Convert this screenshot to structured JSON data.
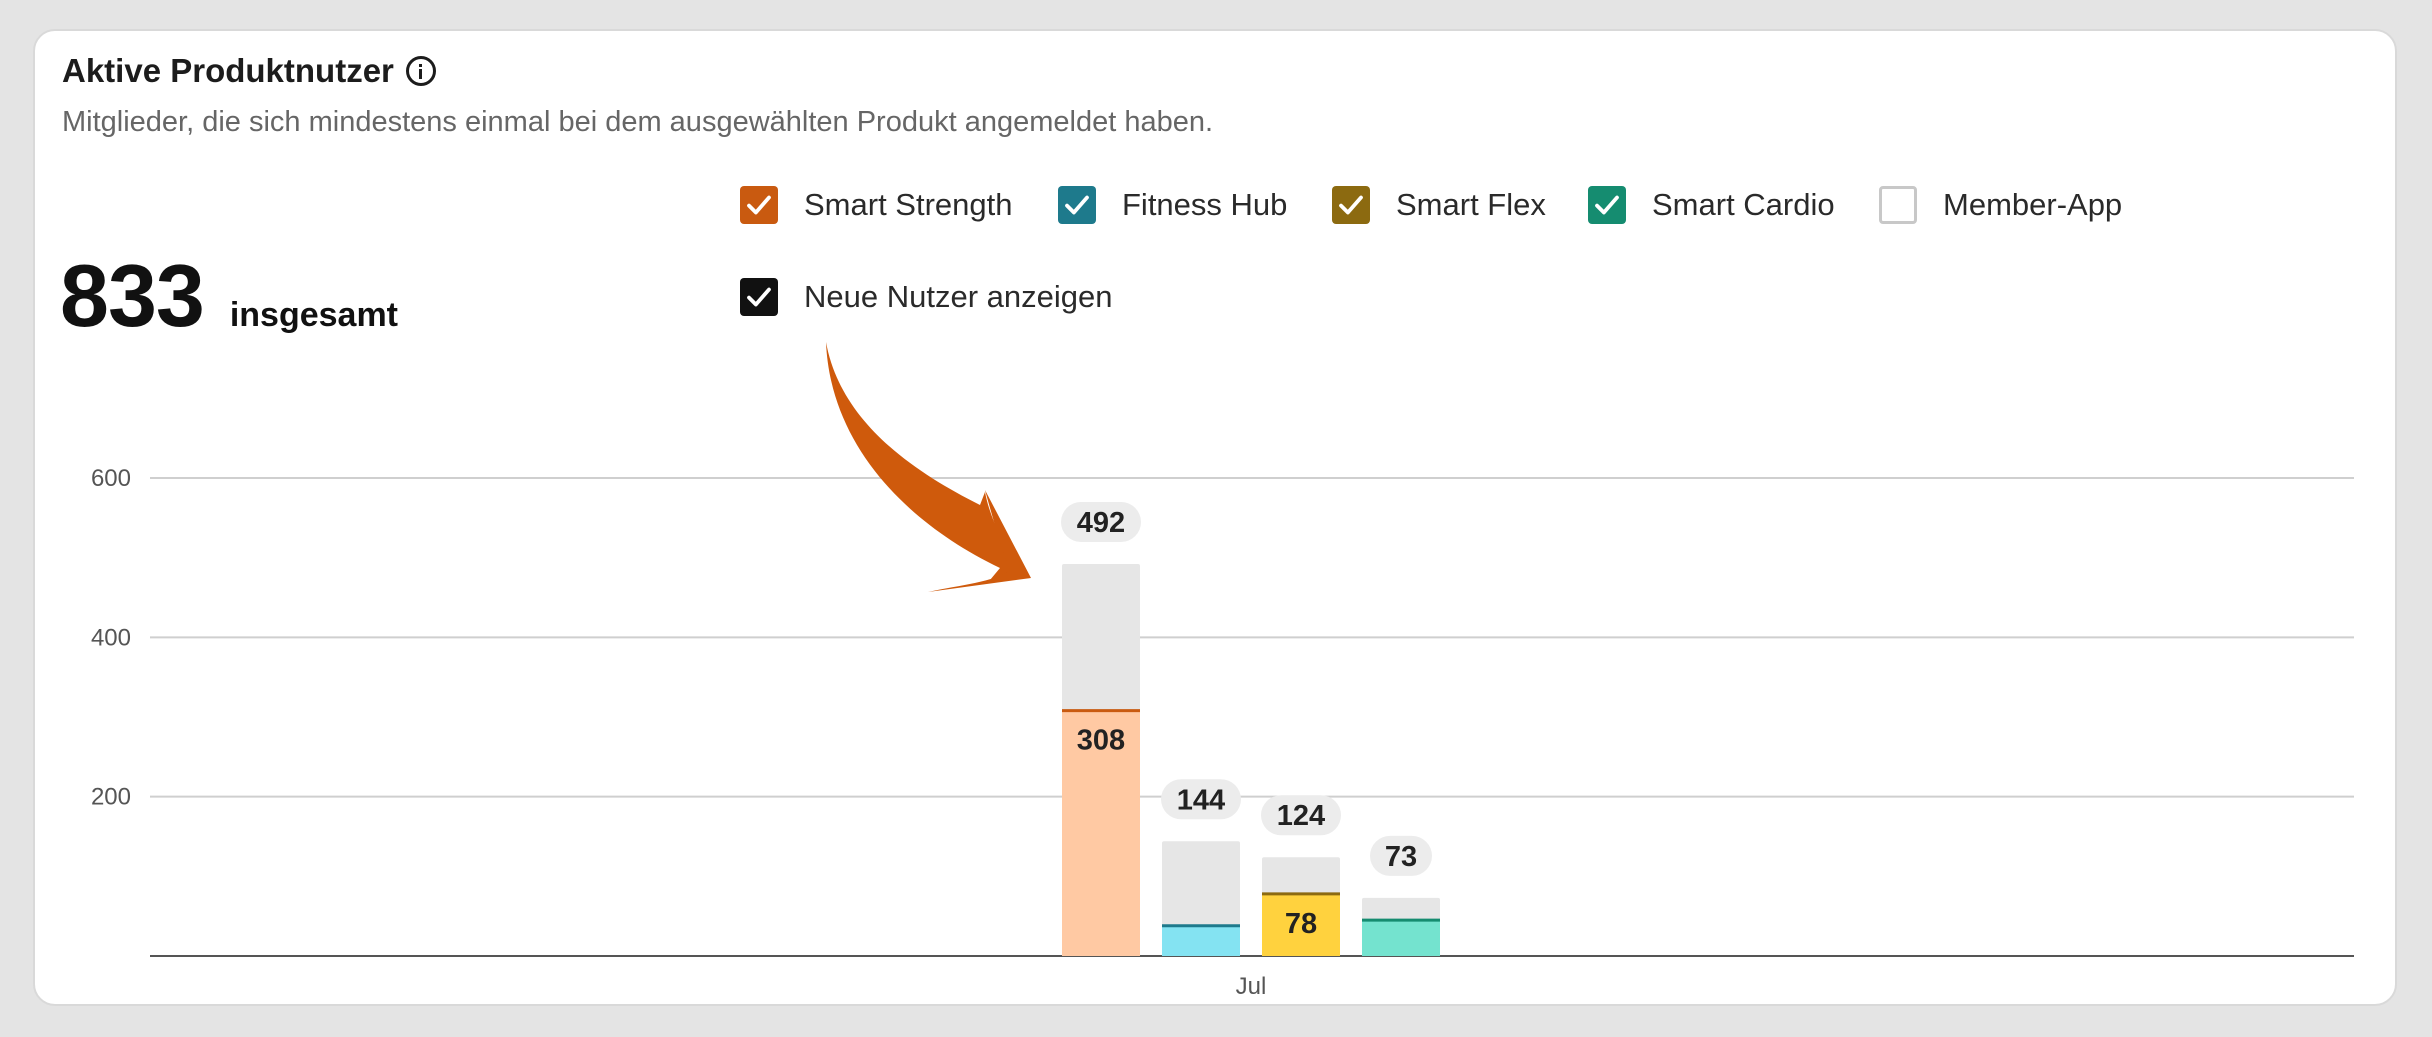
{
  "card": {
    "title": "Aktive Produktnutzer",
    "subtitle": "Mitglieder, die sich mindestens einmal bei dem ausgewählten Produkt angemeldet haben.",
    "total_value": "833",
    "total_label": "insgesamt"
  },
  "legend": [
    {
      "label": "Smart Strength",
      "checked": true,
      "color": "#c95a10"
    },
    {
      "label": "Fitness Hub",
      "checked": true,
      "color": "#1e7a8c"
    },
    {
      "label": "Smart Flex",
      "checked": true,
      "color": "#8c6a10"
    },
    {
      "label": "Smart Cardio",
      "checked": true,
      "color": "#158c70"
    },
    {
      "label": "Member-App",
      "checked": false,
      "color": "#c8c8c8"
    }
  ],
  "show_new_users": {
    "label": "Neue Nutzer anzeigen",
    "checked": true,
    "color": "#111111"
  },
  "annotation": {
    "arrow_color": "#cf5a0c"
  },
  "chart_data": {
    "type": "bar",
    "x_categories": [
      "Jul"
    ],
    "ylim": [
      0,
      600
    ],
    "yticks": [
      200,
      400,
      600
    ],
    "grid": true,
    "series": [
      {
        "name": "Smart Strength",
        "total": 492,
        "highlight": 308,
        "highlight_color": "#ffc9a3",
        "line_color": "#c95a10",
        "show_highlight_label": true
      },
      {
        "name": "Fitness Hub",
        "total": 144,
        "highlight": 38,
        "highlight_color": "#84e3f2",
        "line_color": "#1e7a8c",
        "show_highlight_label": false
      },
      {
        "name": "Smart Flex",
        "total": 124,
        "highlight": 78,
        "highlight_color": "#ffd23e",
        "line_color": "#8c6a10",
        "show_highlight_label": true
      },
      {
        "name": "Smart Cardio",
        "total": 73,
        "highlight": 45,
        "highlight_color": "#74e3cf",
        "line_color": "#158c70",
        "show_highlight_label": false
      }
    ],
    "total_color": "#e6e6e6"
  }
}
